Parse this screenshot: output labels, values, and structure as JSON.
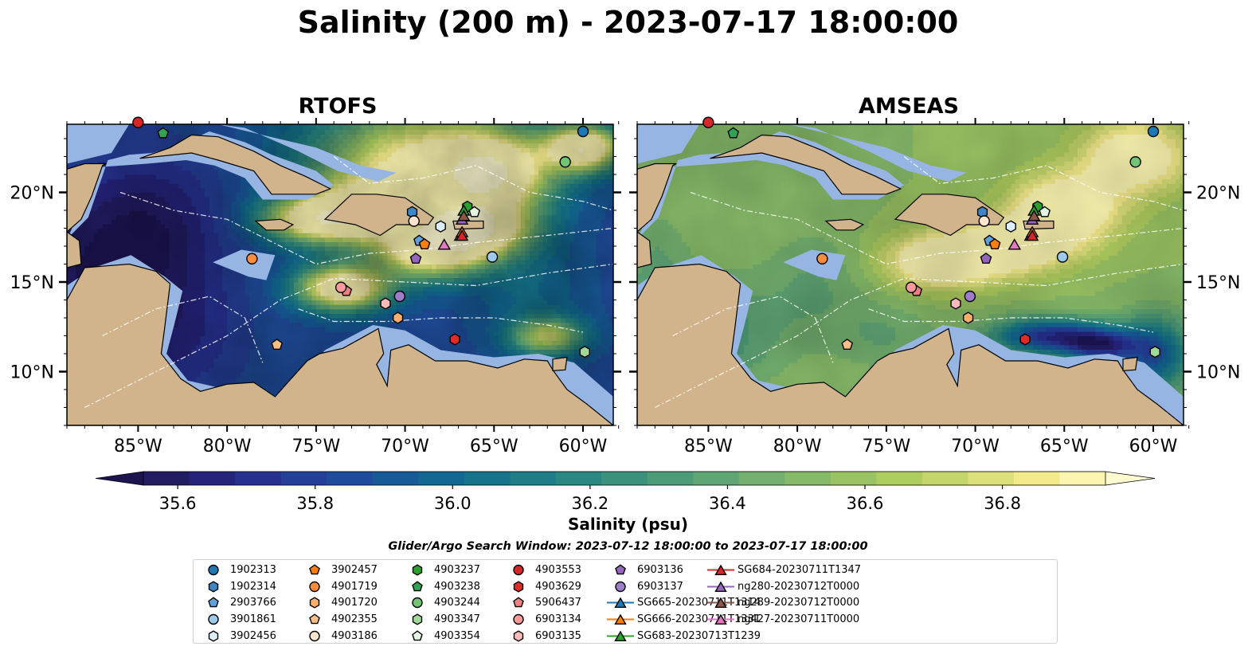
{
  "title": "Salinity (200 m) - 2023-07-17 18:00:00",
  "panels": [
    {
      "name": "RTOFS",
      "model": "rtofs"
    },
    {
      "name": "AMSEAS",
      "model": "amseas"
    }
  ],
  "axes": {
    "lon_ticks": [
      "85°W",
      "80°W",
      "75°W",
      "70°W",
      "65°W",
      "60°W"
    ],
    "lon_values": [
      -85,
      -80,
      -75,
      -70,
      -65,
      -60
    ],
    "lat_ticks": [
      "20°N",
      "15°N",
      "10°N"
    ],
    "lat_values": [
      20,
      15,
      10
    ],
    "lon_range": [
      -89,
      -58.3
    ],
    "lat_range": [
      7,
      23.8
    ]
  },
  "colorbar": {
    "label": "Salinity (psu)",
    "min": 35.55,
    "max": 36.95,
    "step": 0.05,
    "ticks": [
      "35.6",
      "35.8",
      "36.0",
      "36.2",
      "36.4",
      "36.6",
      "36.8"
    ],
    "tick_values": [
      35.6,
      35.8,
      36.0,
      36.2,
      36.4,
      36.6,
      36.8
    ],
    "colors": [
      "#221c62",
      "#25237a",
      "#26318f",
      "#243f98",
      "#1f4c9a",
      "#175a98",
      "#126892",
      "#15738b",
      "#1e7d86",
      "#2a8781",
      "#3b927c",
      "#4d9c78",
      "#5fa675",
      "#73b06f",
      "#86ba69",
      "#9ac463",
      "#aecd5f",
      "#c4d56b",
      "#dbe07a",
      "#f3ea8b",
      "#fbf5b0"
    ],
    "under_color": "#1b1450",
    "over_color": "#fffbd0"
  },
  "colors": {
    "land": "#d2b48c",
    "shallow_water": "#97b5e2"
  },
  "search_window": "Glider/Argo Search Window: 2023-07-12 18:00:00 to 2023-07-17 18:00:00",
  "platforms": [
    {
      "id": "1902313",
      "marker": "circle",
      "color": "#1f77b4",
      "lon": -60.0,
      "lat": 23.4
    },
    {
      "id": "1902314",
      "marker": "hexagon",
      "color": "#3f86c6",
      "lon": -69.6,
      "lat": 18.9
    },
    {
      "id": "2903766",
      "marker": "pentagon",
      "color": "#5ea0dc",
      "lon": -69.2,
      "lat": 17.3
    },
    {
      "id": "3901861",
      "marker": "circle",
      "color": "#9ecae9",
      "lon": -65.1,
      "lat": 16.4
    },
    {
      "id": "3902456",
      "marker": "hexagon",
      "color": "#dceefa",
      "lon": -68.0,
      "lat": 18.1
    },
    {
      "id": "3902457",
      "marker": "pentagon",
      "color": "#ff7f0e",
      "lon": -68.9,
      "lat": 17.1
    },
    {
      "id": "4901719",
      "marker": "circle",
      "color": "#fd8d3c",
      "lon": -78.6,
      "lat": 16.3
    },
    {
      "id": "4901720",
      "marker": "hexagon",
      "color": "#fdae6b",
      "lon": -70.4,
      "lat": 13.0
    },
    {
      "id": "4902355",
      "marker": "pentagon",
      "color": "#fdbf85",
      "lon": -77.2,
      "lat": 11.5
    },
    {
      "id": "4903186",
      "marker": "circle",
      "color": "#fee6ce",
      "lon": -69.5,
      "lat": 18.4
    },
    {
      "id": "4903237",
      "marker": "hexagon",
      "color": "#2ca02c",
      "lon": -66.5,
      "lat": 19.2
    },
    {
      "id": "4903238",
      "marker": "pentagon",
      "color": "#31a354",
      "lon": -83.6,
      "lat": 23.3
    },
    {
      "id": "4903244",
      "marker": "circle",
      "color": "#74c476",
      "lon": -61.0,
      "lat": 21.7
    },
    {
      "id": "4903347",
      "marker": "hexagon",
      "color": "#a1d99b",
      "lon": -59.9,
      "lat": 11.1
    },
    {
      "id": "4903354",
      "marker": "pentagon",
      "color": "#e5f5e0",
      "lon": -66.1,
      "lat": 18.9
    },
    {
      "id": "4903553",
      "marker": "circle",
      "color": "#d62728",
      "lon": -85.0,
      "lat": 23.9
    },
    {
      "id": "4903629",
      "marker": "hexagon",
      "color": "#de2d26",
      "lon": -67.2,
      "lat": 11.8
    },
    {
      "id": "5906437",
      "marker": "pentagon",
      "color": "#f08080",
      "lon": -73.3,
      "lat": 14.5
    },
    {
      "id": "6903134",
      "marker": "circle",
      "color": "#fc9a9a",
      "lon": -73.6,
      "lat": 14.7
    },
    {
      "id": "6903135",
      "marker": "hexagon",
      "color": "#fcbaba",
      "lon": -71.1,
      "lat": 13.8
    },
    {
      "id": "6903136",
      "marker": "pentagon",
      "color": "#9467bd",
      "lon": -69.4,
      "lat": 16.3
    },
    {
      "id": "6903137",
      "marker": "circle",
      "color": "#9e7cc9",
      "lon": -70.3,
      "lat": 14.2
    },
    {
      "id": "SG665-20230711T1314",
      "marker": "triangle",
      "color": "#1f77b4",
      "lon": -66.9,
      "lat": 17.6
    },
    {
      "id": "SG666-20230711T1331",
      "marker": "triangle",
      "color": "#ff7f0e",
      "lon": -66.8,
      "lat": 17.8
    },
    {
      "id": "SG683-20230713T1239",
      "marker": "triangle",
      "color": "#2ca02c",
      "lon": -66.7,
      "lat": 19.0
    },
    {
      "id": "SG684-20230711T1347",
      "marker": "triangle",
      "color": "#d62728",
      "lon": -66.8,
      "lat": 17.6
    },
    {
      "id": "ng280-20230712T0000",
      "marker": "triangle",
      "color": "#9467bd",
      "lon": -66.8,
      "lat": 18.5
    },
    {
      "id": "ng289-20230712T0000",
      "marker": "triangle",
      "color": "#8c564b",
      "lon": -66.7,
      "lat": 18.7
    },
    {
      "id": "ng427-20230711T0000",
      "marker": "triangle",
      "color": "#e377c2",
      "lon": -67.8,
      "lat": 17.1
    }
  ]
}
